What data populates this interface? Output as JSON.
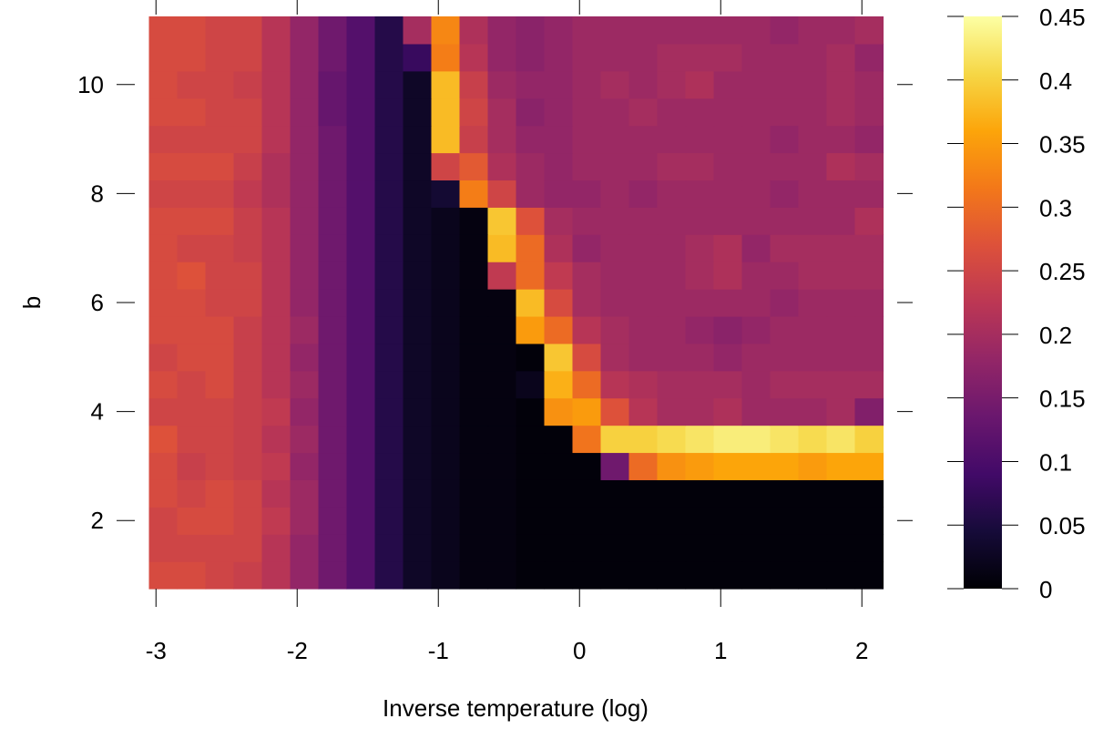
{
  "chart_data": {
    "type": "heatmap",
    "title": "",
    "xlabel": "Inverse temperature (log)",
    "ylabel": "b",
    "x_ticks": [
      "-3",
      "-2",
      "-1",
      "0",
      "1",
      "2"
    ],
    "y_ticks": [
      "2",
      "4",
      "6",
      "8",
      "10"
    ],
    "xlim": [
      -3.15,
      2.25
    ],
    "ylim": [
      0.75,
      11.25
    ],
    "x_centers": [
      -2.95,
      -2.75,
      -2.55,
      -2.35,
      -2.15,
      -1.95,
      -1.75,
      -1.55,
      -1.35,
      -1.15,
      -0.95,
      -0.75,
      -0.55,
      -0.35,
      -0.15,
      0.05,
      0.25,
      0.45,
      0.65,
      0.85,
      1.05,
      1.25,
      1.45,
      1.65,
      1.85,
      2.05
    ],
    "y_centers": [
      1,
      1.5,
      2,
      2.5,
      3,
      3.5,
      4,
      4.5,
      5,
      5.5,
      6,
      6.5,
      7,
      7.5,
      8,
      8.5,
      9,
      9.5,
      10,
      10.5,
      11
    ],
    "colorbar": {
      "ticks": [
        "0",
        "0.05",
        "0.1",
        "0.15",
        "0.2",
        "0.25",
        "0.3",
        "0.35",
        "0.4",
        "0.45"
      ],
      "range": [
        0,
        0.45
      ],
      "colormap": "inferno"
    },
    "z": [
      [
        0.26,
        0.26,
        0.25,
        0.24,
        0.22,
        0.18,
        0.14,
        0.11,
        0.06,
        0.03,
        0.02,
        0.01,
        0.01,
        0.005,
        0.005,
        0.005,
        0.005,
        0.005,
        0.005,
        0.005,
        0.005,
        0.005,
        0.005,
        0.005,
        0.005,
        0.005
      ],
      [
        0.25,
        0.25,
        0.25,
        0.25,
        0.22,
        0.18,
        0.14,
        0.11,
        0.06,
        0.03,
        0.02,
        0.01,
        0.01,
        0.005,
        0.005,
        0.005,
        0.005,
        0.005,
        0.005,
        0.005,
        0.005,
        0.005,
        0.005,
        0.005,
        0.005,
        0.005
      ],
      [
        0.25,
        0.26,
        0.26,
        0.25,
        0.23,
        0.19,
        0.14,
        0.11,
        0.06,
        0.03,
        0.02,
        0.01,
        0.01,
        0.005,
        0.005,
        0.005,
        0.005,
        0.005,
        0.005,
        0.005,
        0.005,
        0.005,
        0.005,
        0.005,
        0.005,
        0.005
      ],
      [
        0.26,
        0.25,
        0.26,
        0.25,
        0.22,
        0.19,
        0.14,
        0.11,
        0.06,
        0.03,
        0.02,
        0.01,
        0.01,
        0.005,
        0.005,
        0.005,
        0.005,
        0.005,
        0.005,
        0.005,
        0.005,
        0.005,
        0.005,
        0.005,
        0.005,
        0.005
      ],
      [
        0.26,
        0.24,
        0.25,
        0.24,
        0.23,
        0.18,
        0.14,
        0.11,
        0.06,
        0.03,
        0.02,
        0.01,
        0.01,
        0.005,
        0.005,
        0.005,
        0.14,
        0.3,
        0.34,
        0.35,
        0.36,
        0.36,
        0.36,
        0.35,
        0.36,
        0.36
      ],
      [
        0.27,
        0.25,
        0.25,
        0.24,
        0.22,
        0.19,
        0.14,
        0.11,
        0.06,
        0.03,
        0.02,
        0.01,
        0.01,
        0.005,
        0.005,
        0.31,
        0.4,
        0.4,
        0.41,
        0.42,
        0.43,
        0.43,
        0.42,
        0.41,
        0.42,
        0.4
      ],
      [
        0.25,
        0.25,
        0.25,
        0.24,
        0.23,
        0.18,
        0.14,
        0.11,
        0.06,
        0.03,
        0.02,
        0.01,
        0.01,
        0.005,
        0.34,
        0.35,
        0.27,
        0.22,
        0.2,
        0.2,
        0.21,
        0.19,
        0.19,
        0.19,
        0.2,
        0.16
      ],
      [
        0.26,
        0.25,
        0.26,
        0.24,
        0.22,
        0.19,
        0.14,
        0.11,
        0.06,
        0.03,
        0.02,
        0.01,
        0.01,
        0.02,
        0.37,
        0.3,
        0.22,
        0.21,
        0.2,
        0.2,
        0.2,
        0.19,
        0.2,
        0.2,
        0.2,
        0.2
      ],
      [
        0.25,
        0.26,
        0.26,
        0.24,
        0.22,
        0.18,
        0.14,
        0.11,
        0.06,
        0.03,
        0.02,
        0.01,
        0.01,
        0.005,
        0.39,
        0.26,
        0.2,
        0.19,
        0.19,
        0.19,
        0.18,
        0.19,
        0.19,
        0.19,
        0.19,
        0.19
      ],
      [
        0.26,
        0.26,
        0.26,
        0.24,
        0.22,
        0.19,
        0.14,
        0.11,
        0.06,
        0.03,
        0.02,
        0.01,
        0.01,
        0.35,
        0.3,
        0.22,
        0.2,
        0.19,
        0.19,
        0.18,
        0.17,
        0.18,
        0.19,
        0.19,
        0.19,
        0.19
      ],
      [
        0.26,
        0.26,
        0.25,
        0.25,
        0.22,
        0.18,
        0.14,
        0.11,
        0.06,
        0.03,
        0.02,
        0.01,
        0.01,
        0.38,
        0.26,
        0.2,
        0.19,
        0.19,
        0.19,
        0.19,
        0.19,
        0.19,
        0.18,
        0.19,
        0.19,
        0.19
      ],
      [
        0.26,
        0.27,
        0.25,
        0.25,
        0.22,
        0.18,
        0.14,
        0.11,
        0.06,
        0.03,
        0.02,
        0.01,
        0.23,
        0.3,
        0.23,
        0.2,
        0.19,
        0.19,
        0.19,
        0.2,
        0.21,
        0.19,
        0.19,
        0.2,
        0.2,
        0.2
      ],
      [
        0.26,
        0.25,
        0.25,
        0.24,
        0.22,
        0.18,
        0.14,
        0.11,
        0.06,
        0.03,
        0.02,
        0.01,
        0.38,
        0.3,
        0.21,
        0.18,
        0.19,
        0.19,
        0.19,
        0.2,
        0.21,
        0.18,
        0.2,
        0.2,
        0.2,
        0.2
      ],
      [
        0.26,
        0.26,
        0.26,
        0.24,
        0.22,
        0.18,
        0.14,
        0.11,
        0.06,
        0.03,
        0.02,
        0.01,
        0.39,
        0.27,
        0.2,
        0.19,
        0.19,
        0.19,
        0.19,
        0.19,
        0.19,
        0.19,
        0.19,
        0.19,
        0.19,
        0.21
      ],
      [
        0.25,
        0.25,
        0.25,
        0.23,
        0.21,
        0.18,
        0.14,
        0.11,
        0.06,
        0.03,
        0.04,
        0.32,
        0.25,
        0.19,
        0.18,
        0.18,
        0.19,
        0.18,
        0.19,
        0.19,
        0.19,
        0.19,
        0.18,
        0.19,
        0.19,
        0.19
      ],
      [
        0.26,
        0.26,
        0.26,
        0.24,
        0.21,
        0.18,
        0.14,
        0.11,
        0.06,
        0.03,
        0.25,
        0.28,
        0.21,
        0.19,
        0.18,
        0.19,
        0.19,
        0.19,
        0.2,
        0.2,
        0.19,
        0.19,
        0.19,
        0.19,
        0.21,
        0.2
      ],
      [
        0.25,
        0.25,
        0.25,
        0.25,
        0.22,
        0.18,
        0.14,
        0.11,
        0.06,
        0.03,
        0.38,
        0.24,
        0.2,
        0.18,
        0.18,
        0.19,
        0.19,
        0.19,
        0.19,
        0.19,
        0.19,
        0.19,
        0.18,
        0.19,
        0.19,
        0.18
      ],
      [
        0.26,
        0.26,
        0.25,
        0.25,
        0.22,
        0.18,
        0.13,
        0.11,
        0.06,
        0.03,
        0.38,
        0.25,
        0.2,
        0.17,
        0.18,
        0.19,
        0.19,
        0.2,
        0.19,
        0.19,
        0.19,
        0.19,
        0.19,
        0.19,
        0.2,
        0.19
      ],
      [
        0.26,
        0.25,
        0.25,
        0.24,
        0.22,
        0.18,
        0.13,
        0.11,
        0.06,
        0.03,
        0.38,
        0.24,
        0.19,
        0.18,
        0.18,
        0.19,
        0.2,
        0.19,
        0.2,
        0.21,
        0.19,
        0.19,
        0.19,
        0.19,
        0.2,
        0.19
      ],
      [
        0.26,
        0.26,
        0.25,
        0.25,
        0.22,
        0.18,
        0.14,
        0.11,
        0.06,
        0.08,
        0.32,
        0.22,
        0.18,
        0.17,
        0.18,
        0.19,
        0.19,
        0.19,
        0.2,
        0.2,
        0.2,
        0.19,
        0.19,
        0.19,
        0.2,
        0.18
      ],
      [
        0.26,
        0.26,
        0.25,
        0.25,
        0.22,
        0.18,
        0.14,
        0.11,
        0.06,
        0.2,
        0.33,
        0.21,
        0.18,
        0.17,
        0.18,
        0.19,
        0.19,
        0.19,
        0.19,
        0.19,
        0.19,
        0.19,
        0.18,
        0.19,
        0.19,
        0.2
      ]
    ]
  }
}
